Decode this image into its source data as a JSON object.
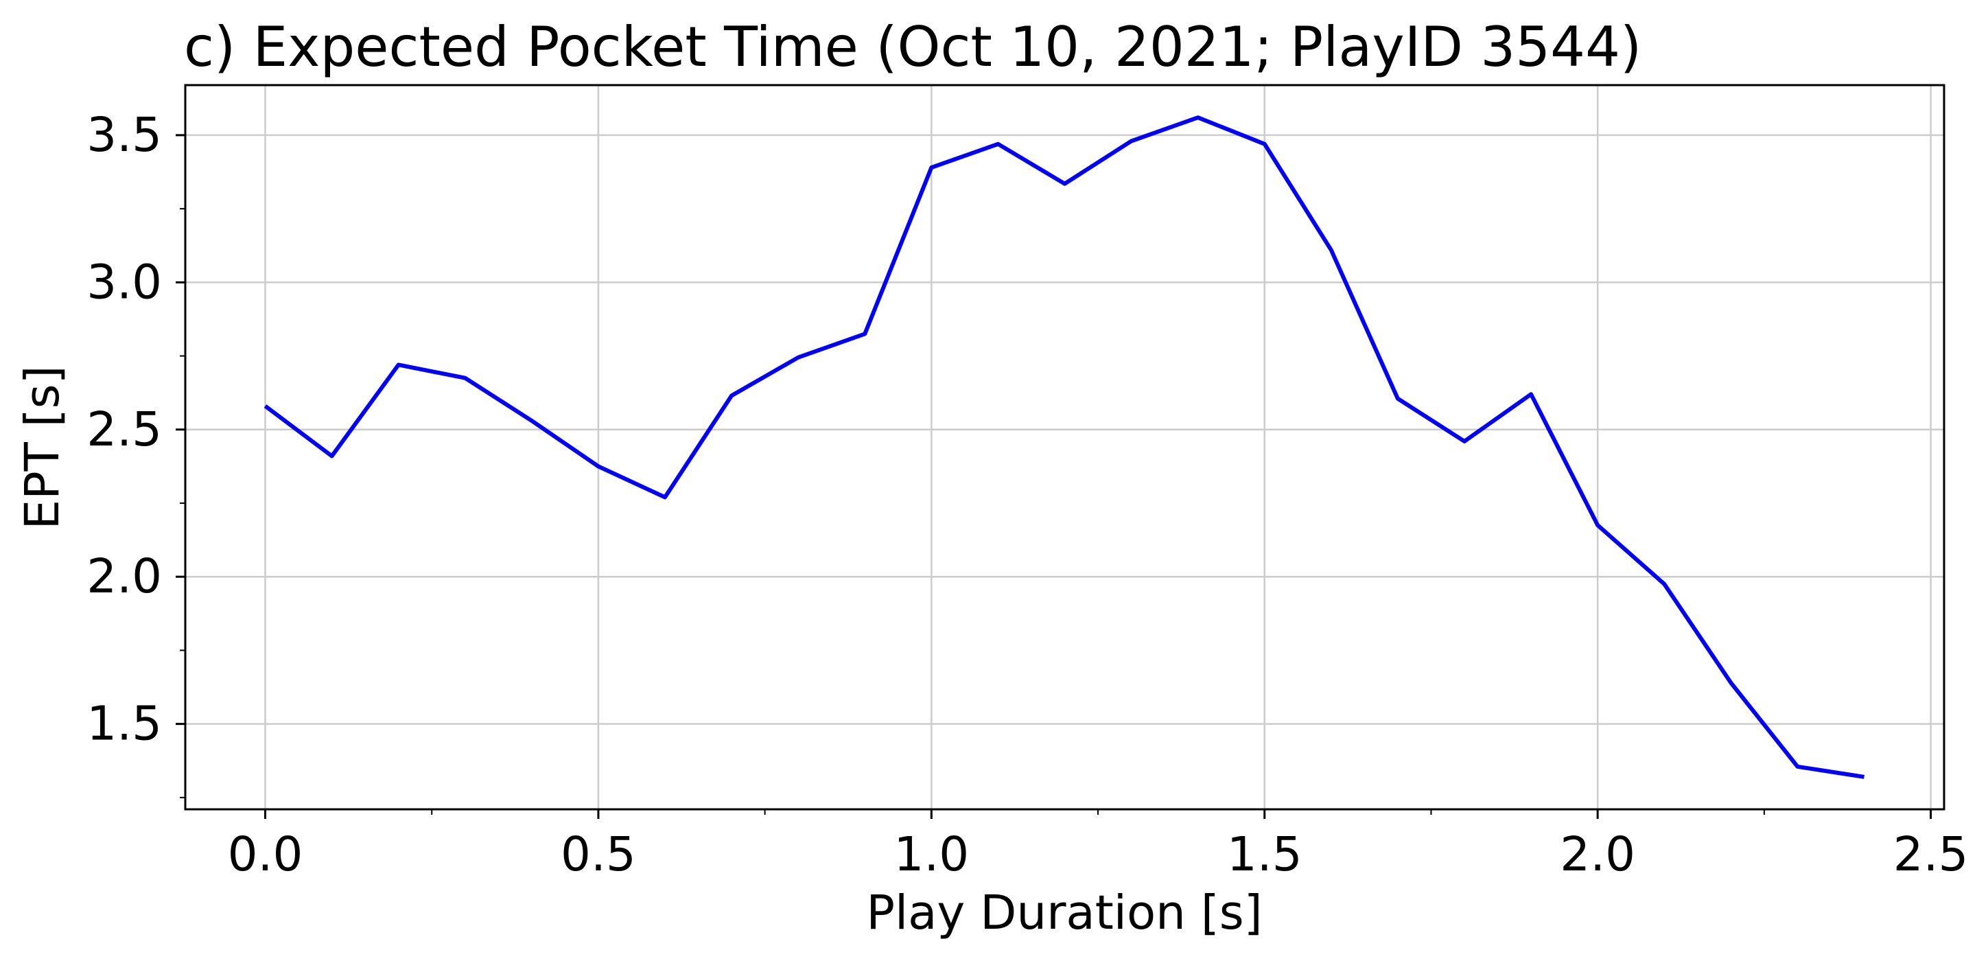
{
  "chart_data": {
    "type": "line",
    "title": "c) Expected Pocket Time (Oct 10, 2021; PlayID 3544)",
    "xlabel": "Play Duration [s]",
    "ylabel": "EPT [s]",
    "xlim": [
      -0.12,
      2.52
    ],
    "ylim": [
      1.21,
      3.67
    ],
    "xticks": [
      0.0,
      0.5,
      1.0,
      1.5,
      2.0,
      2.5
    ],
    "xtick_labels": [
      "0.0",
      "0.5",
      "1.0",
      "1.5",
      "2.0",
      "2.5"
    ],
    "yticks": [
      1.5,
      2.0,
      2.5,
      3.0,
      3.5
    ],
    "ytick_labels": [
      "1.5",
      "2.0",
      "2.5",
      "3.0",
      "3.5"
    ],
    "x_minor_ticks": [
      0.25,
      0.75,
      1.25,
      1.75,
      2.25
    ],
    "y_minor_ticks": [
      1.25,
      1.75,
      2.25,
      2.75,
      3.25
    ],
    "grid": true,
    "legend": "none",
    "series": [
      {
        "color": "#0000ff",
        "x": [
          0.0,
          0.1,
          0.2,
          0.3,
          0.4,
          0.5,
          0.6,
          0.7,
          0.8,
          0.9,
          1.0,
          1.1,
          1.2,
          1.3,
          1.4,
          1.5,
          1.6,
          1.7,
          1.8,
          1.9,
          2.0,
          2.1,
          2.2,
          2.3,
          2.4
        ],
        "y": [
          2.58,
          2.41,
          2.72,
          2.675,
          2.53,
          2.375,
          2.27,
          2.615,
          2.745,
          2.825,
          3.39,
          3.47,
          3.335,
          3.48,
          3.56,
          3.47,
          3.11,
          2.605,
          2.46,
          2.62,
          2.175,
          1.975,
          1.64,
          1.355,
          1.32
        ]
      }
    ]
  }
}
